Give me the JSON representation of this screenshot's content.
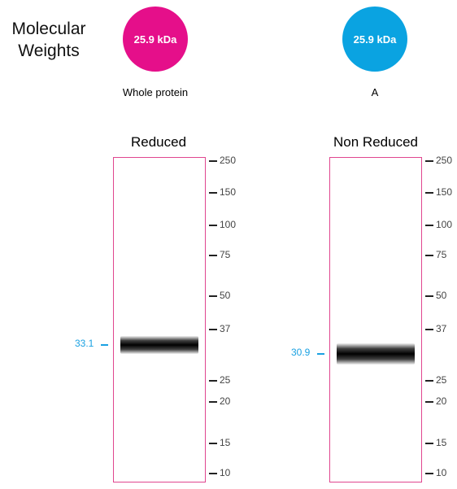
{
  "colors": {
    "protein": "#e50f8a",
    "chain": "#0aa3e1",
    "lane_border": "#e0468f",
    "marker_text": "#1aa1e2"
  },
  "header": {
    "title_line1": "Molecular",
    "title_line2": "Weights"
  },
  "weights": [
    {
      "value_label": "25.9 kDa",
      "caption": "Whole protein",
      "color": "#e50f8a"
    },
    {
      "value_label": "25.9 kDa",
      "caption": "A",
      "color": "#0aa3e1"
    }
  ],
  "ladder": [
    "250",
    "150",
    "100",
    "75",
    "50",
    "37",
    "25",
    "20",
    "15",
    "10"
  ],
  "lanes": [
    {
      "title": "Reduced",
      "band_kda": 33.1,
      "band_label": "33.1"
    },
    {
      "title": "Non Reduced",
      "band_kda": 30.9,
      "band_label": "30.9"
    }
  ]
}
